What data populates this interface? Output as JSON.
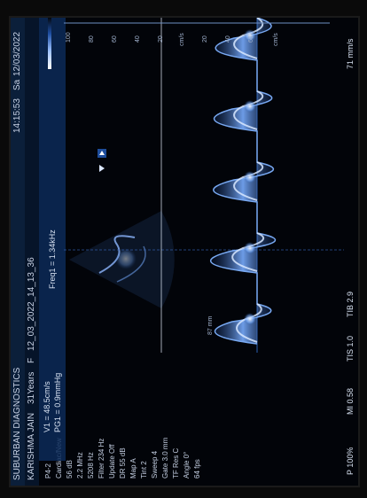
{
  "header": {
    "clinic": "SUBURBAN DIAGNOSTICS",
    "time": "14:15:53",
    "day": "Sa",
    "date": "12/03/2022",
    "patient": "KARISHMA JAIN",
    "age": "31Years",
    "sex": "F",
    "exam_id": "12_03_2022_14_13_36"
  },
  "measurements": {
    "v1": "V1 = 48.5cm/s",
    "pg1": "PG1 = 0.9mmHg",
    "freq": "Freq1 = 1.34kHz"
  },
  "left_params": [
    "P4-2",
    "Cardiac/New",
    "56 dB",
    "2.2 MHz",
    "5208 Hz",
    "Filter 234 Hz",
    "Update Off",
    "DR 55 dB",
    "Map A",
    "Tint 2",
    "Sweep 4",
    "Gate 3.0 mm",
    "TF Res C",
    "Angle 0°",
    "64 fps"
  ],
  "depth_label": "87 mm",
  "footer": {
    "power": "P 100%",
    "mi": "MI 0.58",
    "tis": "TIS 1.0",
    "tib": "TIB 2.9",
    "speed": "71 mm/s"
  },
  "scale_ticks": [
    "100",
    "80",
    "60",
    "40",
    "20",
    "cm/s",
    "20",
    "40",
    "60",
    "cm/s"
  ],
  "colors": {
    "header_bg": "#0b1f3a",
    "doppler_blue": "#6aa8ff",
    "highlight": "#ffffff"
  },
  "icons": [
    "arrow-down-icon",
    "play-icon"
  ]
}
